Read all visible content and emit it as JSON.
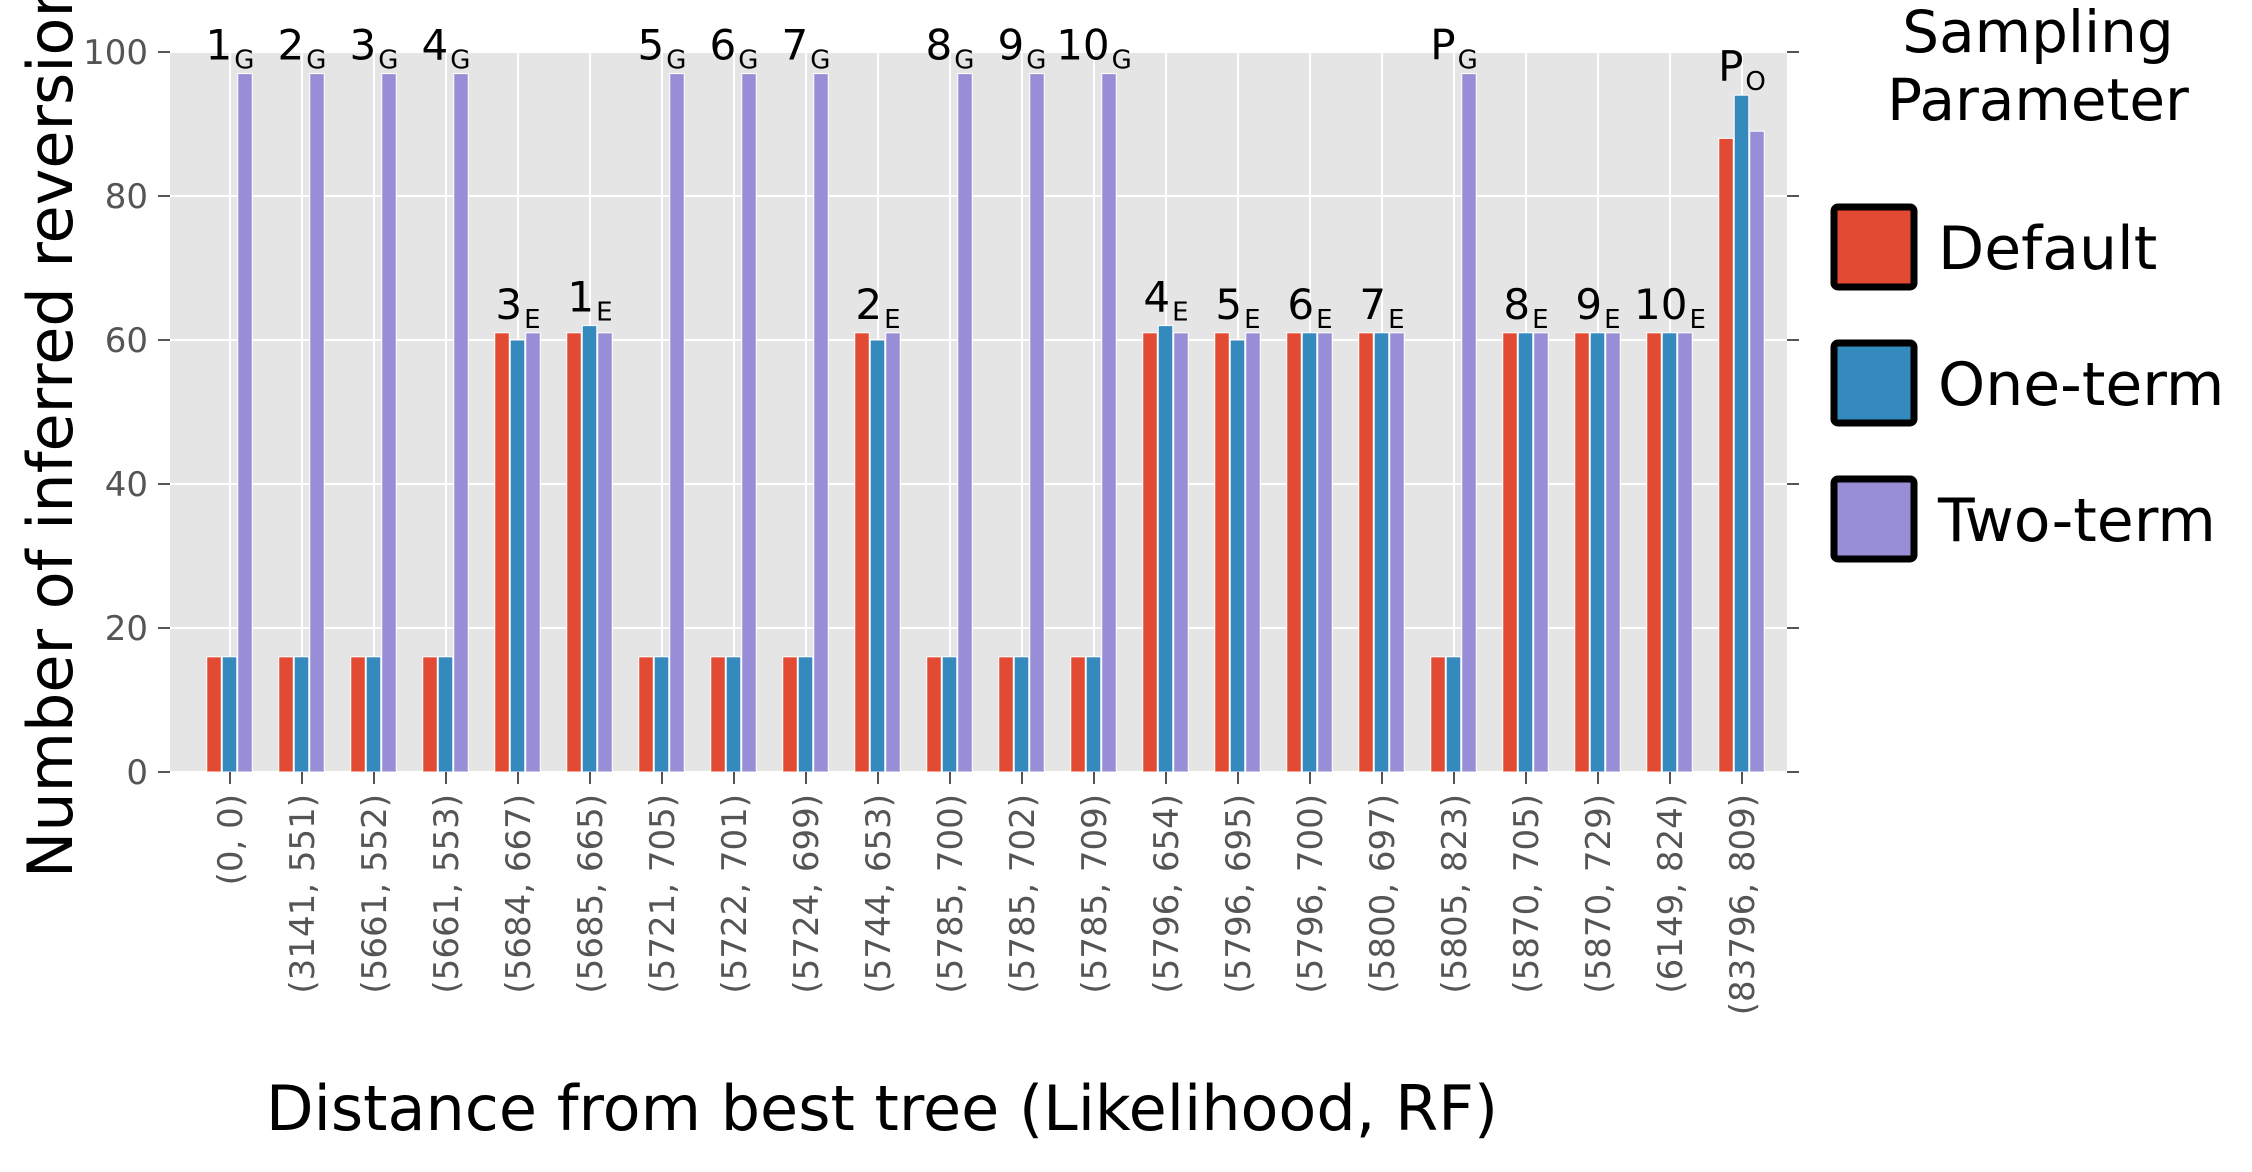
{
  "chart_data": {
    "type": "bar",
    "xlabel": "Distance from best tree (Likelihood, RF)",
    "ylabel": "Number of inferred reversions",
    "ylim": [
      0,
      100
    ],
    "yticks": [
      "0",
      "20",
      "40",
      "60",
      "80",
      "100"
    ],
    "grid": true,
    "legend": {
      "title": "Sampling\nParameter",
      "placement": "right-outside"
    },
    "categories": [
      "(0, 0)",
      "(3141, 551)",
      "(5661, 552)",
      "(5661, 553)",
      "(5684, 667)",
      "(5685, 665)",
      "(5721, 705)",
      "(5722, 701)",
      "(5724, 699)",
      "(5744, 653)",
      "(5785, 700)",
      "(5785, 702)",
      "(5785, 709)",
      "(5796, 654)",
      "(5796, 695)",
      "(5796, 700)",
      "(5800, 697)",
      "(5805, 823)",
      "(5870, 705)",
      "(5870, 729)",
      "(6149, 824)",
      "(83796, 809)"
    ],
    "bar_labels": [
      {
        "main": "1",
        "sub": "G"
      },
      {
        "main": "2",
        "sub": "G"
      },
      {
        "main": "3",
        "sub": "G"
      },
      {
        "main": "4",
        "sub": "G"
      },
      {
        "main": "3",
        "sub": "E"
      },
      {
        "main": "1",
        "sub": "E"
      },
      {
        "main": "5",
        "sub": "G"
      },
      {
        "main": "6",
        "sub": "G"
      },
      {
        "main": "7",
        "sub": "G"
      },
      {
        "main": "2",
        "sub": "E"
      },
      {
        "main": "8",
        "sub": "G"
      },
      {
        "main": "9",
        "sub": "G"
      },
      {
        "main": "10",
        "sub": "G"
      },
      {
        "main": "4",
        "sub": "E"
      },
      {
        "main": "5",
        "sub": "E"
      },
      {
        "main": "6",
        "sub": "E"
      },
      {
        "main": "7",
        "sub": "E"
      },
      {
        "main": "P",
        "sub": "G"
      },
      {
        "main": "8",
        "sub": "E"
      },
      {
        "main": "9",
        "sub": "E"
      },
      {
        "main": "10",
        "sub": "E"
      },
      {
        "main": "P",
        "sub": "O"
      }
    ],
    "series": [
      {
        "name": "Default",
        "color": "#E24A33",
        "values": [
          16,
          16,
          16,
          16,
          61,
          61,
          16,
          16,
          16,
          61,
          16,
          16,
          16,
          61,
          61,
          61,
          61,
          16,
          61,
          61,
          61,
          88
        ]
      },
      {
        "name": "One-term",
        "color": "#348ABD",
        "values": [
          16,
          16,
          16,
          16,
          60,
          62,
          16,
          16,
          16,
          60,
          16,
          16,
          16,
          62,
          60,
          61,
          61,
          16,
          61,
          61,
          61,
          94
        ]
      },
      {
        "name": "Two-term",
        "color": "#988ED5",
        "values": [
          97,
          97,
          97,
          97,
          61,
          61,
          97,
          97,
          97,
          61,
          97,
          97,
          97,
          61,
          61,
          61,
          61,
          97,
          61,
          61,
          61,
          89
        ]
      }
    ]
  }
}
